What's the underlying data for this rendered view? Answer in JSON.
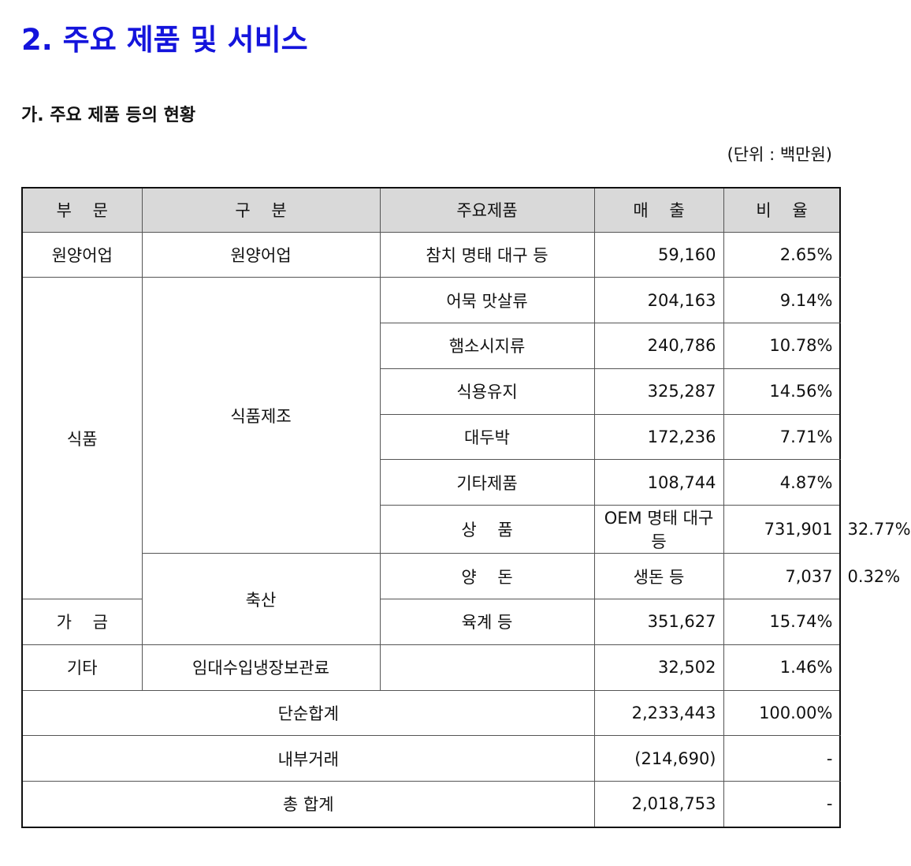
{
  "header": {
    "title": "2. 주요 제품 및 서비스",
    "subtitle": "가. 주요 제품 등의 현황",
    "unit": "(단위 : 백만원)"
  },
  "table": {
    "columns": [
      "부 문",
      "구 분",
      "주요제품",
      "매 출",
      "비 율"
    ],
    "rows": [
      [
        "원양어업",
        "원양어업",
        "참치 명태 대구 등",
        "59,160",
        "2.65%"
      ],
      [
        "식품",
        "식품제조",
        "어묵 맛살류",
        "204,163",
        "9.14%"
      ],
      [
        "햄소시지류",
        "240,786",
        "10.78%"
      ],
      [
        "식용유지",
        "325,287",
        "14.56%"
      ],
      [
        "대두박",
        "172,236",
        "7.71%"
      ],
      [
        "기타제품",
        "108,744",
        "4.87%"
      ],
      [
        "상 품",
        "OEM 명태 대구 등",
        "731,901",
        "32.77%"
      ],
      [
        "축산",
        "양 돈",
        "생돈 등",
        "7,037",
        "0.32%"
      ],
      [
        "가 금",
        "육계 등",
        "351,627",
        "15.74%"
      ],
      [
        "기타",
        "임대수입냉장보관료",
        "32,502",
        "1.46%"
      ],
      [
        "단순합계",
        "2,233,443",
        "100.00%"
      ],
      [
        "내부거래",
        "(214,690)",
        "-"
      ],
      [
        "총 합계",
        "2,018,753",
        "-"
      ]
    ]
  }
}
